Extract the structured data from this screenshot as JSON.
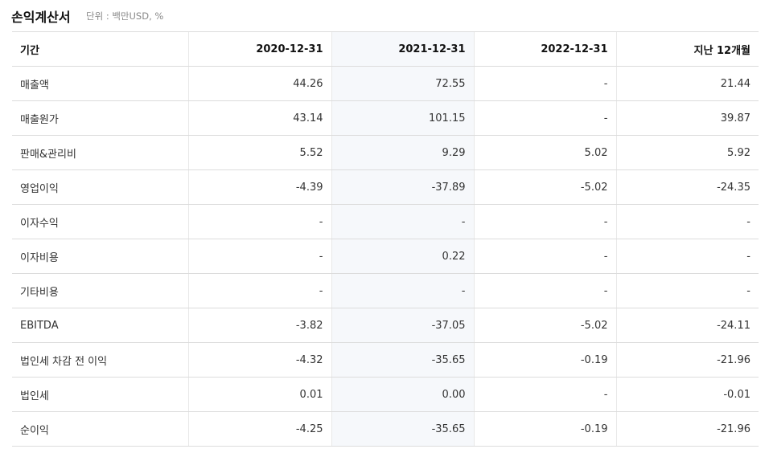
{
  "header": {
    "title": "손익계산서",
    "unit": "단위 : 백만USD, %"
  },
  "table": {
    "columns": [
      "기간",
      "2020-12-31",
      "2021-12-31",
      "2022-12-31",
      "지난 12개월"
    ],
    "rows": [
      [
        "매출액",
        "44.26",
        "72.55",
        "-",
        "21.44"
      ],
      [
        "매출원가",
        "43.14",
        "101.15",
        "-",
        "39.87"
      ],
      [
        "판매&관리비",
        "5.52",
        "9.29",
        "5.02",
        "5.92"
      ],
      [
        "영업이익",
        "-4.39",
        "-37.89",
        "-5.02",
        "-24.35"
      ],
      [
        "이자수익",
        "-",
        "-",
        "-",
        "-"
      ],
      [
        "이자비용",
        "-",
        "0.22",
        "-",
        "-"
      ],
      [
        "기타비용",
        "-",
        "-",
        "-",
        "-"
      ],
      [
        "EBITDA",
        "-3.82",
        "-37.05",
        "-5.02",
        "-24.11"
      ],
      [
        "법인세 차감 전 이익",
        "-4.32",
        "-35.65",
        "-0.19",
        "-21.96"
      ],
      [
        "법인세",
        "0.01",
        "0.00",
        "-",
        "-0.01"
      ],
      [
        "순이익",
        "-4.25",
        "-35.65",
        "-0.19",
        "-21.96"
      ]
    ]
  }
}
